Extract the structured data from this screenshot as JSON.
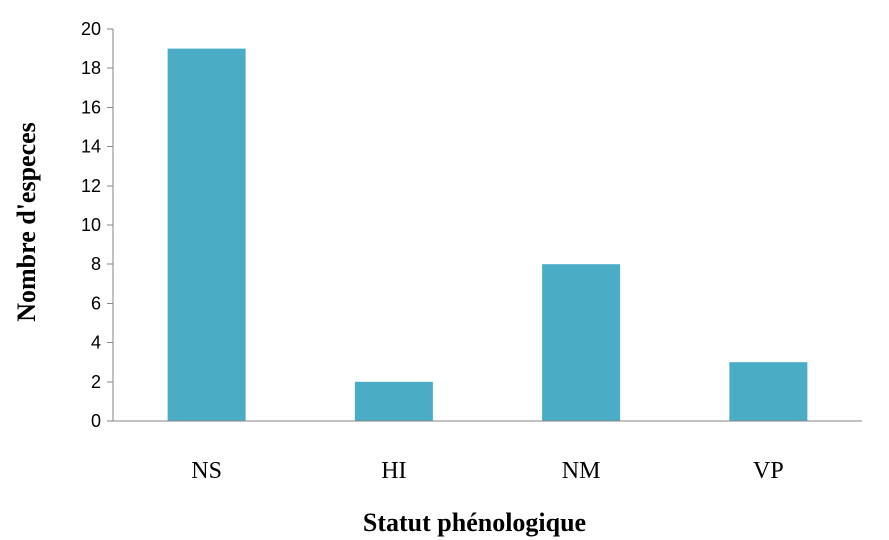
{
  "chart_data": {
    "type": "bar",
    "categories": [
      "NS",
      "HI",
      "NM",
      "VP"
    ],
    "values": [
      19,
      2,
      8,
      3
    ],
    "title": "",
    "xlabel": "Statut phénologique",
    "ylabel": "Nombre d'especes",
    "ylim": [
      0,
      20
    ],
    "ytick_step": 2,
    "yticks": [
      "0",
      "2",
      "4",
      "6",
      "8",
      "10",
      "12",
      "14",
      "16",
      "18",
      "20"
    ],
    "grid": false,
    "legend": "none",
    "bar_color": "#4BACC6"
  }
}
